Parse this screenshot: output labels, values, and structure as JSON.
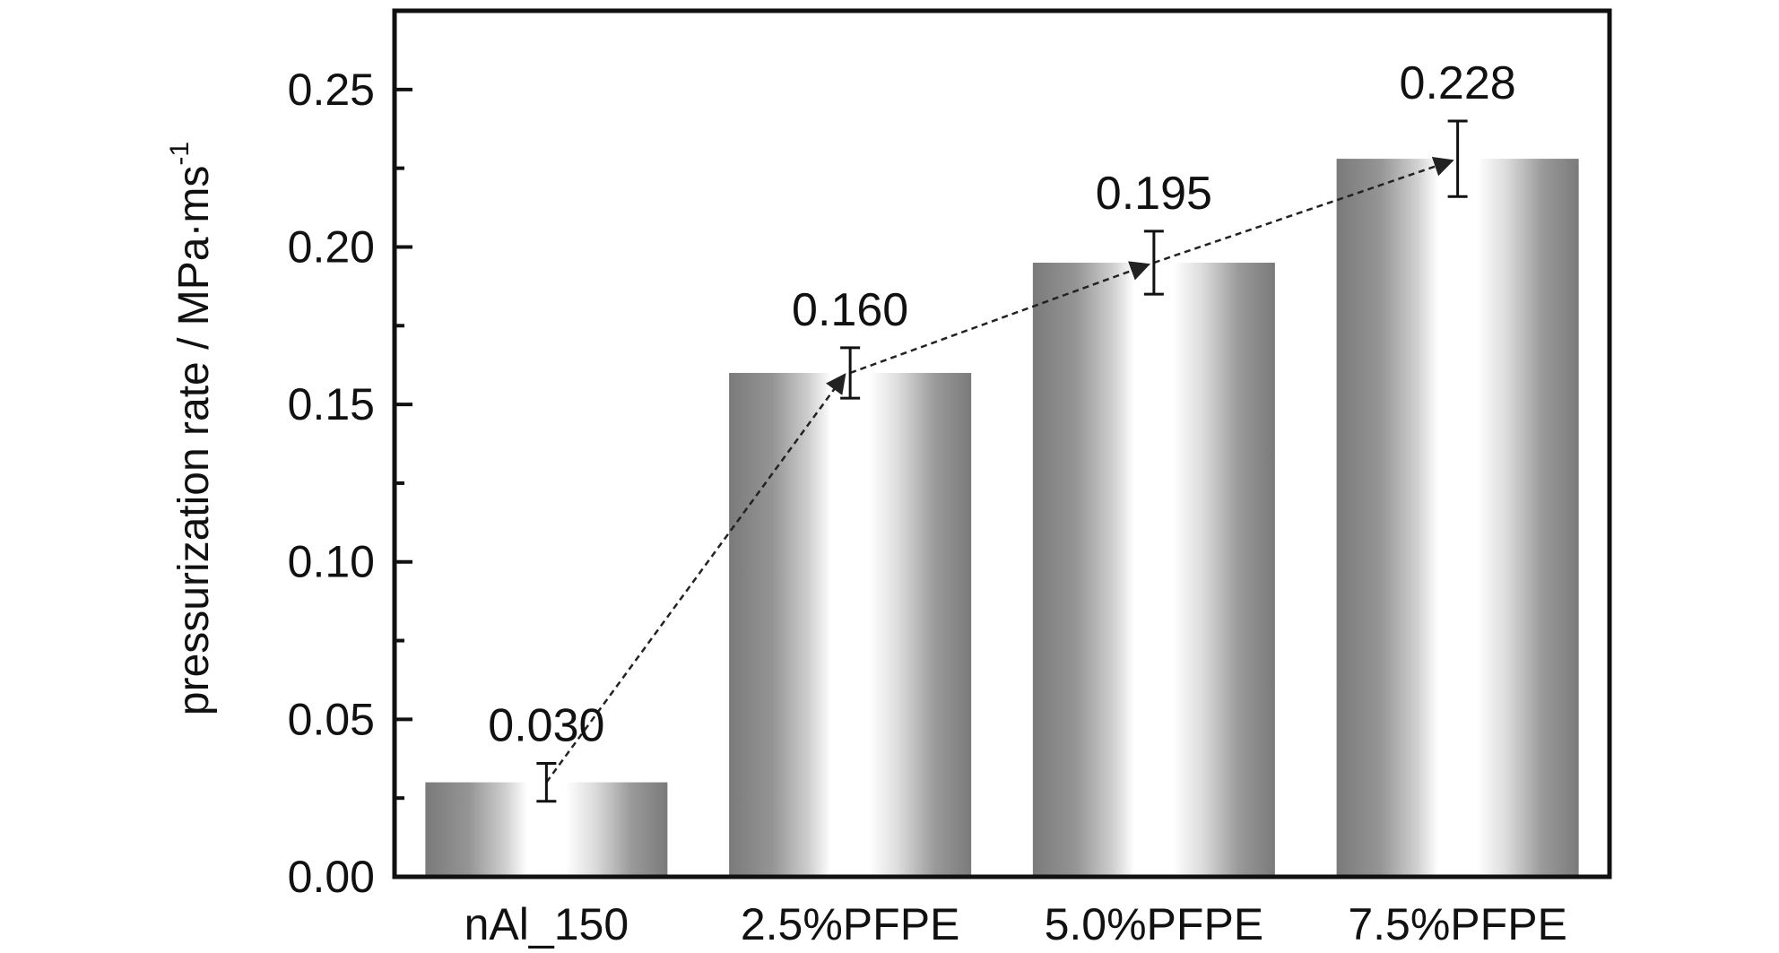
{
  "chart_data": {
    "type": "bar",
    "title": "",
    "xlabel": "",
    "ylabel": "pressurization rate / MPa·ms",
    "ylabel_superscript": "-1",
    "ylim": [
      0,
      0.275
    ],
    "yticks": [
      "0.00",
      "0.05",
      "0.10",
      "0.15",
      "0.20",
      "0.25"
    ],
    "categories": [
      "nAl_150",
      "2.5%PFPE",
      "5.0%PFPE",
      "7.5%PFPE"
    ],
    "values": [
      0.03,
      0.16,
      0.195,
      0.228
    ],
    "value_labels": [
      "0.030",
      "0.160",
      "0.195",
      "0.228"
    ],
    "error": [
      0.006,
      0.008,
      0.01,
      0.012
    ],
    "grid": false,
    "legend": "none",
    "trend_arrow": "dashed",
    "colors": {
      "bar_dark": "#7a7a7a",
      "bar_mid": "#b4b4b4",
      "bar_light": "#ffffff",
      "axis": "#111111"
    }
  }
}
